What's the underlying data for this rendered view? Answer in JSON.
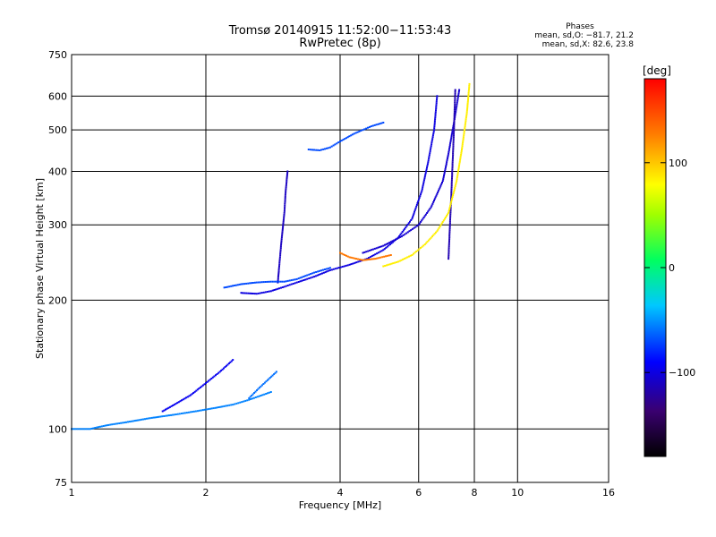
{
  "chart_data": {
    "type": "scatter",
    "title": "Tromsø 20140915 11:52:00−11:53:43",
    "subtitle": "RwPretec (8p)",
    "xlabel": "Frequency [MHz]",
    "ylabel": "Stationary phase Virtual Height [km]",
    "x_scale": "log",
    "y_scale": "log",
    "xlim": [
      1,
      16
    ],
    "ylim": [
      75,
      750
    ],
    "x_ticks": [
      "1",
      "2",
      "4",
      "6",
      "8",
      "10",
      "16"
    ],
    "x_tick_values": [
      1,
      2,
      4,
      6,
      8,
      10,
      16
    ],
    "y_ticks": [
      "75",
      "100",
      "200",
      "300",
      "400",
      "500",
      "600",
      "750"
    ],
    "y_tick_values": [
      75,
      100,
      200,
      300,
      400,
      500,
      600,
      750
    ],
    "grid": true,
    "stats": {
      "heading": "Phases",
      "line_o": "mean, sd,O: −81.7, 21.2",
      "line_x": "mean, sd,X:  82.6, 23.8"
    },
    "colorbar": {
      "label": "[deg]",
      "range": [
        -180,
        180
      ],
      "ticks": [
        "100",
        "0",
        "−100"
      ],
      "tick_values": [
        100,
        0,
        -100
      ]
    },
    "series": [
      {
        "segments": [
          {
            "f": [
              1.0,
              1.1,
              1.2,
              1.35,
              1.5,
              1.7,
              1.9,
              2.1,
              2.3,
              2.5,
              2.8
            ],
            "h": [
              100,
              100,
              102,
              104,
              106,
              108,
              110,
              112,
              114,
              117,
              122
            ],
            "phase": -55
          },
          {
            "f": [
              1.6,
              1.7,
              1.85,
              2.0,
              2.15,
              2.3
            ],
            "h": [
              110,
              114,
              120,
              128,
              136,
              145
            ],
            "phase": -95
          },
          {
            "f": [
              2.5,
              2.62,
              2.75,
              2.88
            ],
            "h": [
              118,
              124,
              130,
              136
            ],
            "phase": -60
          },
          {
            "f": [
              2.9,
              2.95,
              3.0,
              3.02,
              3.05
            ],
            "h": [
              220,
              270,
              320,
              360,
              400
            ],
            "phase": -110
          },
          {
            "f": [
              2.4,
              2.6,
              2.8,
              3.0,
              3.2,
              3.5,
              3.8,
              4.2,
              4.6,
              5.0,
              5.4,
              5.8,
              6.1,
              6.3,
              6.5,
              6.6
            ],
            "h": [
              208,
              207,
              210,
              215,
              220,
              227,
              235,
              242,
              250,
              262,
              280,
              310,
              360,
              420,
              500,
              600
            ],
            "phase": -100
          },
          {
            "f": [
              2.2,
              2.4,
              2.6,
              2.8,
              3.0,
              3.2,
              3.5,
              3.8
            ],
            "h": [
              214,
              218,
              220,
              221,
              221,
              224,
              232,
              238
            ],
            "phase": -70
          },
          {
            "f": [
              3.4,
              3.6,
              3.8,
              4.0,
              4.3,
              4.7,
              5.0
            ],
            "h": [
              450,
              448,
              455,
              470,
              490,
              510,
              520
            ],
            "phase": -70
          },
          {
            "f": [
              4.5,
              5.0,
              5.5,
              6.0,
              6.4,
              6.8,
              7.0,
              7.2,
              7.4
            ],
            "h": [
              258,
              268,
              282,
              300,
              330,
              380,
              440,
              520,
              620
            ],
            "phase": -105
          },
          {
            "f": [
              7.0,
              7.1,
              7.2,
              7.25
            ],
            "h": [
              250,
              350,
              500,
              620
            ],
            "phase": -115
          },
          {
            "f": [
              4.0,
              4.2,
              4.5,
              4.8,
              5.2
            ],
            "h": [
              258,
              252,
              248,
              250,
              255
            ],
            "phase": 130
          },
          {
            "f": [
              5.0,
              5.4,
              5.8,
              6.2,
              6.6,
              7.0,
              7.3,
              7.5,
              7.7,
              7.8
            ],
            "h": [
              240,
              246,
              255,
              270,
              290,
              320,
              380,
              450,
              550,
              640
            ],
            "phase": 85
          }
        ]
      }
    ]
  }
}
